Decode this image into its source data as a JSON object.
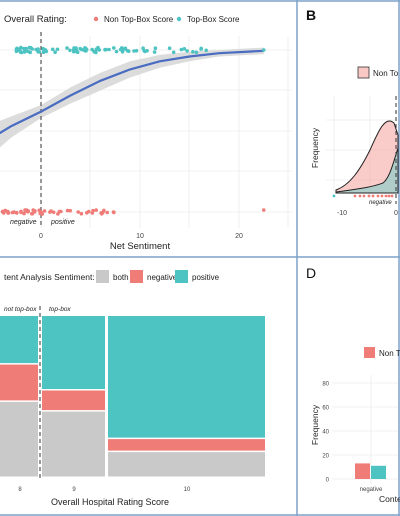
{
  "figure": {
    "panel_labels": {
      "b": "B",
      "d": "D"
    },
    "colors": {
      "pink": "#F07C78",
      "teal": "#4DC3C2",
      "gray": "#C9C9C9",
      "blue": "#4A6CC1",
      "band": "#D6D6D6",
      "border": "#7FA0CB"
    }
  },
  "chart_data": [
    {
      "id": "A",
      "type": "scatter",
      "legend": {
        "title": "Overall Rating:",
        "items": [
          "Non Top-Box Score",
          "Top-Box Score"
        ],
        "placement": "top"
      },
      "xlabel": "Net Sentiment",
      "xticks": [
        "0",
        "10",
        "20"
      ],
      "annotations": [
        "negative",
        "positive"
      ],
      "vline_x": 0,
      "fit_curve_x": [
        -9,
        -6,
        -3,
        0,
        3,
        6,
        9,
        12,
        15,
        18,
        21,
        22.5
      ],
      "fit_curve_p": [
        0.3,
        0.42,
        0.53,
        0.62,
        0.72,
        0.81,
        0.88,
        0.93,
        0.96,
        0.98,
        0.99,
        0.995
      ],
      "band_upper": [
        0.45,
        0.52,
        0.59,
        0.66,
        0.77,
        0.86,
        0.93,
        0.97,
        0.99,
        1.0,
        1.01,
        1.015
      ],
      "band_lower": [
        0.12,
        0.3,
        0.46,
        0.58,
        0.67,
        0.75,
        0.83,
        0.89,
        0.93,
        0.96,
        0.97,
        0.975
      ]
    },
    {
      "id": "B",
      "type": "area",
      "legend": {
        "items": [
          "Non To"
        ]
      },
      "ylabel": "Frequency",
      "xticks": [
        "-10",
        "0"
      ],
      "annotations": [
        "negative"
      ],
      "vline_x": 0
    },
    {
      "id": "C",
      "type": "bar",
      "subtype": "mosaic",
      "legend": {
        "title": "tent Analysis Sentiment:",
        "items": [
          "both",
          "negative",
          "positive"
        ]
      },
      "xlabel": "Overall Hospital Rating Score",
      "categories": [
        "8",
        "9",
        "10"
      ],
      "facet_labels": [
        "not top-box",
        "top-box"
      ],
      "columns": [
        {
          "x": "8",
          "positive": 0.3,
          "negative": 0.23,
          "both": 0.47
        },
        {
          "x": "9",
          "positive": 0.46,
          "negative": 0.13,
          "both": 0.41
        },
        {
          "x": "10",
          "positive": 0.76,
          "negative": 0.08,
          "both": 0.16
        }
      ]
    },
    {
      "id": "D",
      "type": "bar",
      "legend": {
        "items": [
          "Non Top"
        ]
      },
      "ylabel": "Frequency",
      "xlabel": "Conte",
      "yticks": [
        "0",
        "20",
        "40",
        "60",
        "80"
      ],
      "categories": [
        "negative"
      ],
      "series": [
        {
          "name": "Non Top-Box Score",
          "values": [
            13
          ]
        },
        {
          "name": "Top-Box Score",
          "values": [
            11
          ]
        }
      ]
    }
  ]
}
